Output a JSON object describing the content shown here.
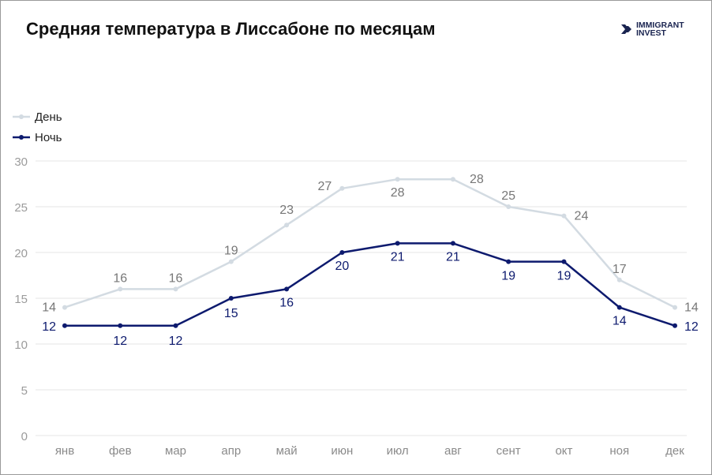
{
  "title": "Средняя температура в Лиссабоне по месяцам",
  "logo": {
    "line1": "IMMIGRANT",
    "line2": "INVEST",
    "icon": "double-chevron-right-icon"
  },
  "colors": {
    "day": "#d3dbe2",
    "night": "#0d1a6e",
    "grid": "#e6e6e6",
    "axis_text": "#9b9b9b",
    "day_label": "#777777",
    "night_label": "#0d1a6e"
  },
  "chart_data": {
    "type": "line",
    "title": "Средняя температура в Лиссабоне по месяцам",
    "categories": [
      "янв",
      "фев",
      "мар",
      "апр",
      "май",
      "июн",
      "июл",
      "авг",
      "сент",
      "окт",
      "ноя",
      "дек"
    ],
    "series": [
      {
        "name": "День",
        "values": [
          14,
          16,
          16,
          19,
          23,
          27,
          28,
          28,
          25,
          24,
          17,
          14
        ]
      },
      {
        "name": "Ночь",
        "values": [
          12,
          12,
          12,
          15,
          16,
          20,
          21,
          21,
          19,
          19,
          14,
          12
        ]
      }
    ],
    "yticks": [
      "0",
      "5",
      "10",
      "15",
      "20",
      "25",
      "30"
    ],
    "ylim": [
      0,
      30
    ],
    "grid": true,
    "legend": "top-left",
    "data_labels": true
  }
}
